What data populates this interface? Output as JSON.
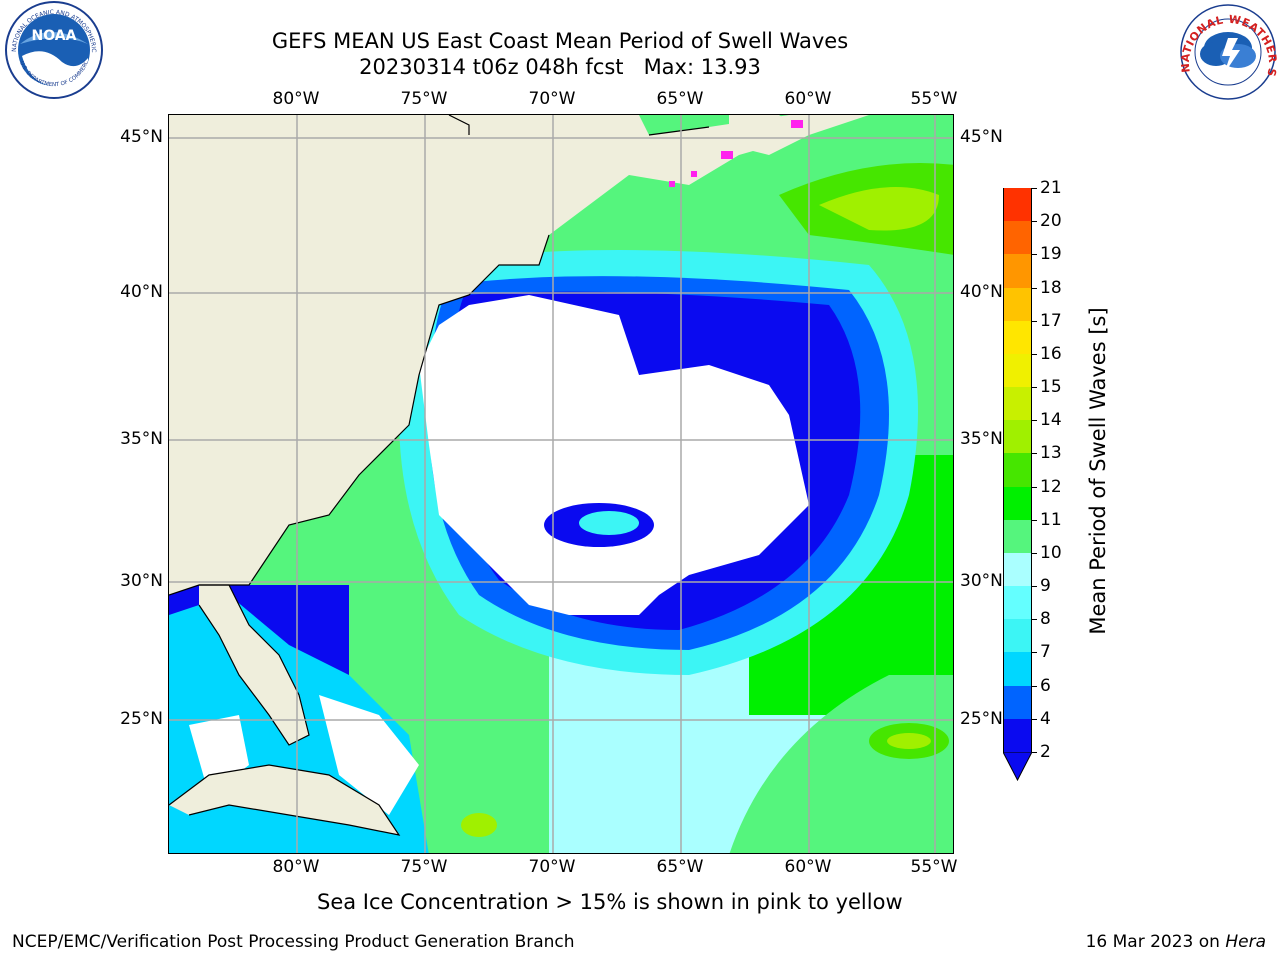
{
  "header": {
    "title_line1": "GEFS MEAN US East Coast Mean Period of Swell Waves",
    "title_line2": "20230314 t06z 048h fcst   Max: 13.93"
  },
  "logos": {
    "left": "NOAA",
    "left_ring_text": "NATIONAL OCEANIC AND ATMOSPHERIC ADMINISTRATION",
    "left_bottom_text": "U.S. DEPARTMENT OF COMMERCE",
    "right_ring_text": "NATIONAL WEATHER SERVICE"
  },
  "map": {
    "longitude_labels": [
      "80°W",
      "75°W",
      "70°W",
      "65°W",
      "60°W",
      "55°W"
    ],
    "latitude_labels": [
      "45°N",
      "40°N",
      "35°N",
      "30°N",
      "25°N"
    ],
    "extent": {
      "lon_min": -84.9,
      "lon_max": -54.3,
      "lat_min": 20.5,
      "lat_max": 46.0
    },
    "colors": {
      "land": "#efeedc",
      "no_data": "#ffffff",
      "grid": "#aaaaaa",
      "coast": "#000000",
      "sea_ice": "#ff22ee"
    }
  },
  "colorbar": {
    "label": "Mean Period of Swell Waves [s]",
    "ticks": [
      "2",
      "4",
      "6",
      "7",
      "8",
      "9",
      "10",
      "11",
      "12",
      "13",
      "14",
      "15",
      "16",
      "17",
      "18",
      "19",
      "20",
      "21"
    ],
    "colors": [
      "#0a0af0",
      "#0064ff",
      "#00d7ff",
      "#3cf5f5",
      "#64ffff",
      "#aaffff",
      "#55f57d",
      "#00f000",
      "#46e600",
      "#a0f000",
      "#c8f000",
      "#f0f000",
      "#ffe600",
      "#ffc300",
      "#ff9600",
      "#ff6400",
      "#ff3200",
      "#ff0000"
    ],
    "extend_color": "#0a0af0"
  },
  "notes": {
    "ice": "Sea Ice Concentration > 15% is shown in pink to yellow",
    "footer_left": "NCEP/EMC/Verification Post Processing Product Generation Branch",
    "footer_date": "16 Mar 2023 on ",
    "footer_host": "Hera"
  }
}
